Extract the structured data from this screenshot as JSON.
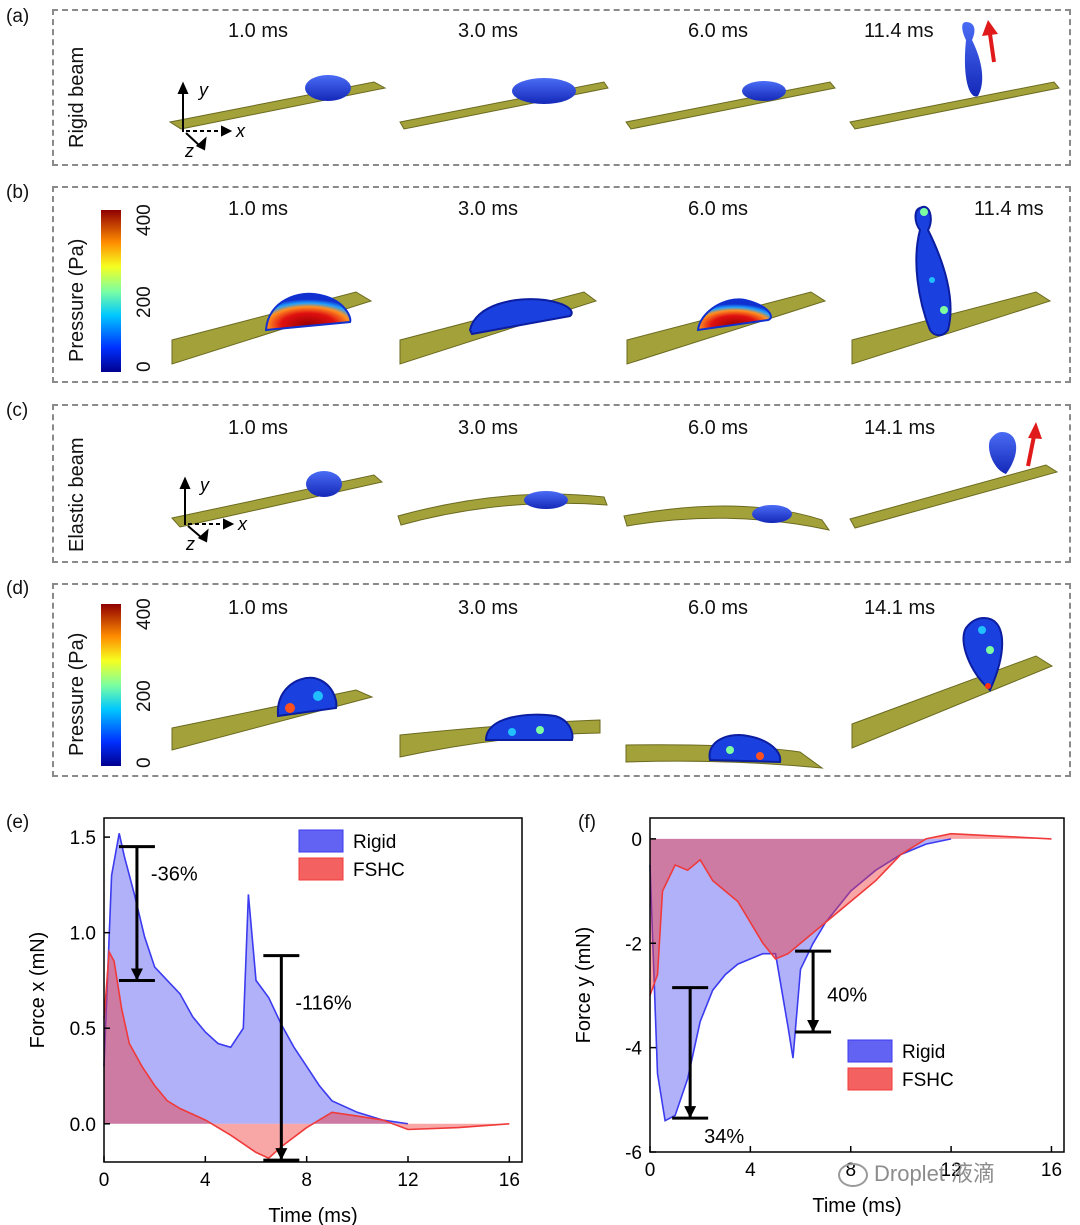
{
  "panels": {
    "a": {
      "label": "(a)",
      "side_label": "Rigid beam",
      "times": [
        "1.0 ms",
        "3.0 ms",
        "6.0 ms",
        "11.4 ms"
      ]
    },
    "b": {
      "label": "(b)",
      "times": [
        "1.0 ms",
        "3.0 ms",
        "6.0 ms",
        "11.4 ms"
      ]
    },
    "c": {
      "label": "(c)",
      "side_label": "Elastic beam",
      "times": [
        "1.0 ms",
        "3.0 ms",
        "6.0 ms",
        "14.1 ms"
      ]
    },
    "d": {
      "label": "(d)",
      "times": [
        "1.0 ms",
        "3.0 ms",
        "6.0 ms",
        "14.1 ms"
      ]
    },
    "e": {
      "label": "(e)"
    },
    "f": {
      "label": "(f)"
    }
  },
  "axes_labels": {
    "x": "x",
    "y": "y",
    "z": "z"
  },
  "colorbar": {
    "title": "Pressure (Pa)",
    "ticks": [
      "400",
      "200",
      "0"
    ],
    "min": 0,
    "max": 400
  },
  "colors": {
    "beam": "#a3a23a",
    "droplet": "#1f3fd6",
    "arrow": "#e01a1a",
    "rigid": "#3b3bf0",
    "fshc": "#f03a3a"
  },
  "watermark": "Droplet 液滴",
  "chart_data": [
    {
      "type": "area",
      "title": "",
      "xlabel": "Time (ms)",
      "ylabel": "Force x (mN)",
      "xlim": [
        0,
        16.5
      ],
      "ylim": [
        -0.2,
        1.6
      ],
      "xticks": [
        "0",
        "4",
        "8",
        "12",
        "16"
      ],
      "yticks": [
        "0.0",
        "0.5",
        "1.0",
        "1.5"
      ],
      "legend": [
        "Rigid",
        "FSHC"
      ],
      "series": [
        {
          "name": "Rigid",
          "x": [
            0,
            0.3,
            0.6,
            0.8,
            1.2,
            1.6,
            2.0,
            2.5,
            3.0,
            3.5,
            4.0,
            4.5,
            5.0,
            5.5,
            5.7,
            6.0,
            6.5,
            7.0,
            7.5,
            8.0,
            8.5,
            9.0,
            10.0,
            11.0,
            12.0
          ],
          "y": [
            0.3,
            1.3,
            1.52,
            1.4,
            1.2,
            0.98,
            0.82,
            0.75,
            0.68,
            0.56,
            0.48,
            0.42,
            0.4,
            0.5,
            1.2,
            0.75,
            0.66,
            0.52,
            0.4,
            0.3,
            0.2,
            0.12,
            0.06,
            0.02,
            0.0
          ]
        },
        {
          "name": "FSHC",
          "x": [
            0,
            0.2,
            0.4,
            0.7,
            1.0,
            1.5,
            2.0,
            2.5,
            3.0,
            4.0,
            5.0,
            6.0,
            6.5,
            7.0,
            8.0,
            9.0,
            10.0,
            11.0,
            12.0,
            14.0,
            16.0
          ],
          "y": [
            0.55,
            0.9,
            0.85,
            0.6,
            0.42,
            0.3,
            0.2,
            0.12,
            0.08,
            0.02,
            -0.06,
            -0.15,
            -0.18,
            -0.12,
            -0.02,
            0.06,
            0.04,
            0.02,
            -0.03,
            -0.02,
            0.0
          ]
        }
      ],
      "annotations": [
        {
          "text": "-36%",
          "from": 1.45,
          "to": 0.75,
          "x": 1.3
        },
        {
          "text": "-116%",
          "from": 0.88,
          "to": -0.19,
          "x": 7.0
        }
      ]
    },
    {
      "type": "area",
      "title": "",
      "xlabel": "Time (ms)",
      "ylabel": "Force y (mN)",
      "xlim": [
        0,
        16.5
      ],
      "ylim": [
        -6,
        0.4
      ],
      "xticks": [
        "0",
        "4",
        "8",
        "12",
        "16"
      ],
      "yticks": [
        "0",
        "-2",
        "-4",
        "-6"
      ],
      "legend": [
        "Rigid",
        "FSHC"
      ],
      "series": [
        {
          "name": "Rigid",
          "x": [
            0,
            0.3,
            0.6,
            1.0,
            1.5,
            2.0,
            2.5,
            3.0,
            3.5,
            4.0,
            4.5,
            5.0,
            5.5,
            5.7,
            6.0,
            6.5,
            7.0,
            8.0,
            9.0,
            10.0,
            11.0,
            12.0
          ],
          "y": [
            -0.5,
            -4.5,
            -5.4,
            -5.3,
            -4.6,
            -3.5,
            -2.9,
            -2.6,
            -2.4,
            -2.3,
            -2.2,
            -2.2,
            -3.6,
            -4.2,
            -2.5,
            -2.0,
            -1.6,
            -1.0,
            -0.6,
            -0.3,
            -0.1,
            0.0
          ]
        },
        {
          "name": "FSHC",
          "x": [
            0,
            0.3,
            0.5,
            1.0,
            1.5,
            2.0,
            2.5,
            3.0,
            3.5,
            4.0,
            4.5,
            5.0,
            5.5,
            6.0,
            7.0,
            8.0,
            9.0,
            10.0,
            11.0,
            12.0,
            14.0,
            16.0
          ],
          "y": [
            -3.0,
            -2.6,
            -1.0,
            -0.5,
            -0.6,
            -0.4,
            -0.8,
            -1.0,
            -1.2,
            -1.6,
            -2.0,
            -2.3,
            -2.2,
            -2.0,
            -1.6,
            -1.2,
            -0.8,
            -0.3,
            0.0,
            0.1,
            0.05,
            0.0
          ]
        }
      ],
      "annotations": [
        {
          "text": "34%",
          "from": -2.85,
          "to": -5.35,
          "x": 1.6
        },
        {
          "text": "40%",
          "from": -2.15,
          "to": -3.7,
          "x": 6.5
        }
      ]
    }
  ]
}
